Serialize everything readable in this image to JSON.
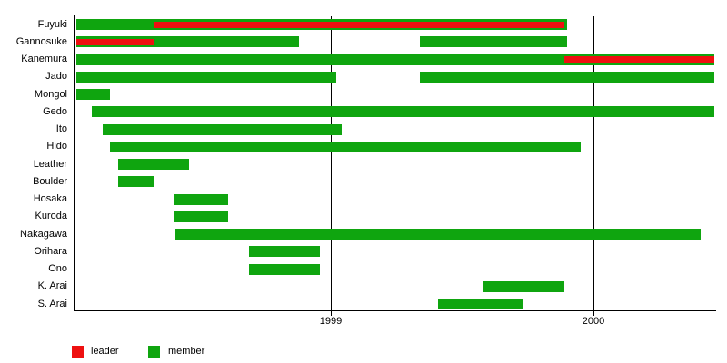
{
  "chart_data": {
    "type": "timeline-gantt",
    "title": "",
    "x_axis": {
      "min_year": 1998.01,
      "max_year": 2000.47,
      "ticks": [
        {
          "label": "1999",
          "year": 1999
        },
        {
          "label": "2000",
          "year": 2000
        }
      ]
    },
    "colors": {
      "member": "#0FA50F",
      "leader": "#EE1010",
      "axis": "#000000",
      "background": "#ffffff"
    },
    "legend": [
      {
        "label": "leader",
        "color_key": "leader"
      },
      {
        "label": "member",
        "color_key": "member"
      }
    ],
    "rows": [
      {
        "name": "Fuyuki",
        "bars": [
          {
            "start": 1998.03,
            "end": 1999.9,
            "leader": {
              "start": 1998.33,
              "end": 1999.89
            }
          }
        ]
      },
      {
        "name": "Gannosuke",
        "bars": [
          {
            "start": 1998.03,
            "end": 1998.88,
            "leader": {
              "start": 1998.03,
              "end": 1998.33
            }
          },
          {
            "start": 1999.34,
            "end": 1999.9
          }
        ]
      },
      {
        "name": "Kanemura",
        "bars": [
          {
            "start": 1998.03,
            "end": 2000.46,
            "leader": {
              "start": 1999.89,
              "end": 2000.46
            }
          }
        ]
      },
      {
        "name": "Jado",
        "bars": [
          {
            "start": 1998.03,
            "end": 1999.02
          },
          {
            "start": 1999.34,
            "end": 2000.46
          }
        ]
      },
      {
        "name": "Mongol",
        "bars": [
          {
            "start": 1998.03,
            "end": 1998.16
          }
        ]
      },
      {
        "name": "Gedo",
        "bars": [
          {
            "start": 1998.09,
            "end": 2000.46
          }
        ]
      },
      {
        "name": "Ito",
        "bars": [
          {
            "start": 1998.13,
            "end": 1999.04
          }
        ]
      },
      {
        "name": "Hido",
        "bars": [
          {
            "start": 1998.16,
            "end": 1999.95
          }
        ]
      },
      {
        "name": "Leather",
        "bars": [
          {
            "start": 1998.19,
            "end": 1998.46
          }
        ]
      },
      {
        "name": "Boulder",
        "bars": [
          {
            "start": 1998.19,
            "end": 1998.33
          }
        ]
      },
      {
        "name": "Hosaka",
        "bars": [
          {
            "start": 1998.4,
            "end": 1998.61
          }
        ]
      },
      {
        "name": "Kuroda",
        "bars": [
          {
            "start": 1998.4,
            "end": 1998.61
          }
        ]
      },
      {
        "name": "Nakagawa",
        "bars": [
          {
            "start": 1998.41,
            "end": 2000.41
          }
        ]
      },
      {
        "name": "Orihara",
        "bars": [
          {
            "start": 1998.69,
            "end": 1998.96
          }
        ]
      },
      {
        "name": "Ono",
        "bars": [
          {
            "start": 1998.69,
            "end": 1998.96
          }
        ]
      },
      {
        "name": "K. Arai",
        "bars": [
          {
            "start": 1999.58,
            "end": 1999.89
          }
        ]
      },
      {
        "name": "S. Arai",
        "bars": [
          {
            "start": 1999.41,
            "end": 1999.73
          }
        ]
      }
    ]
  }
}
